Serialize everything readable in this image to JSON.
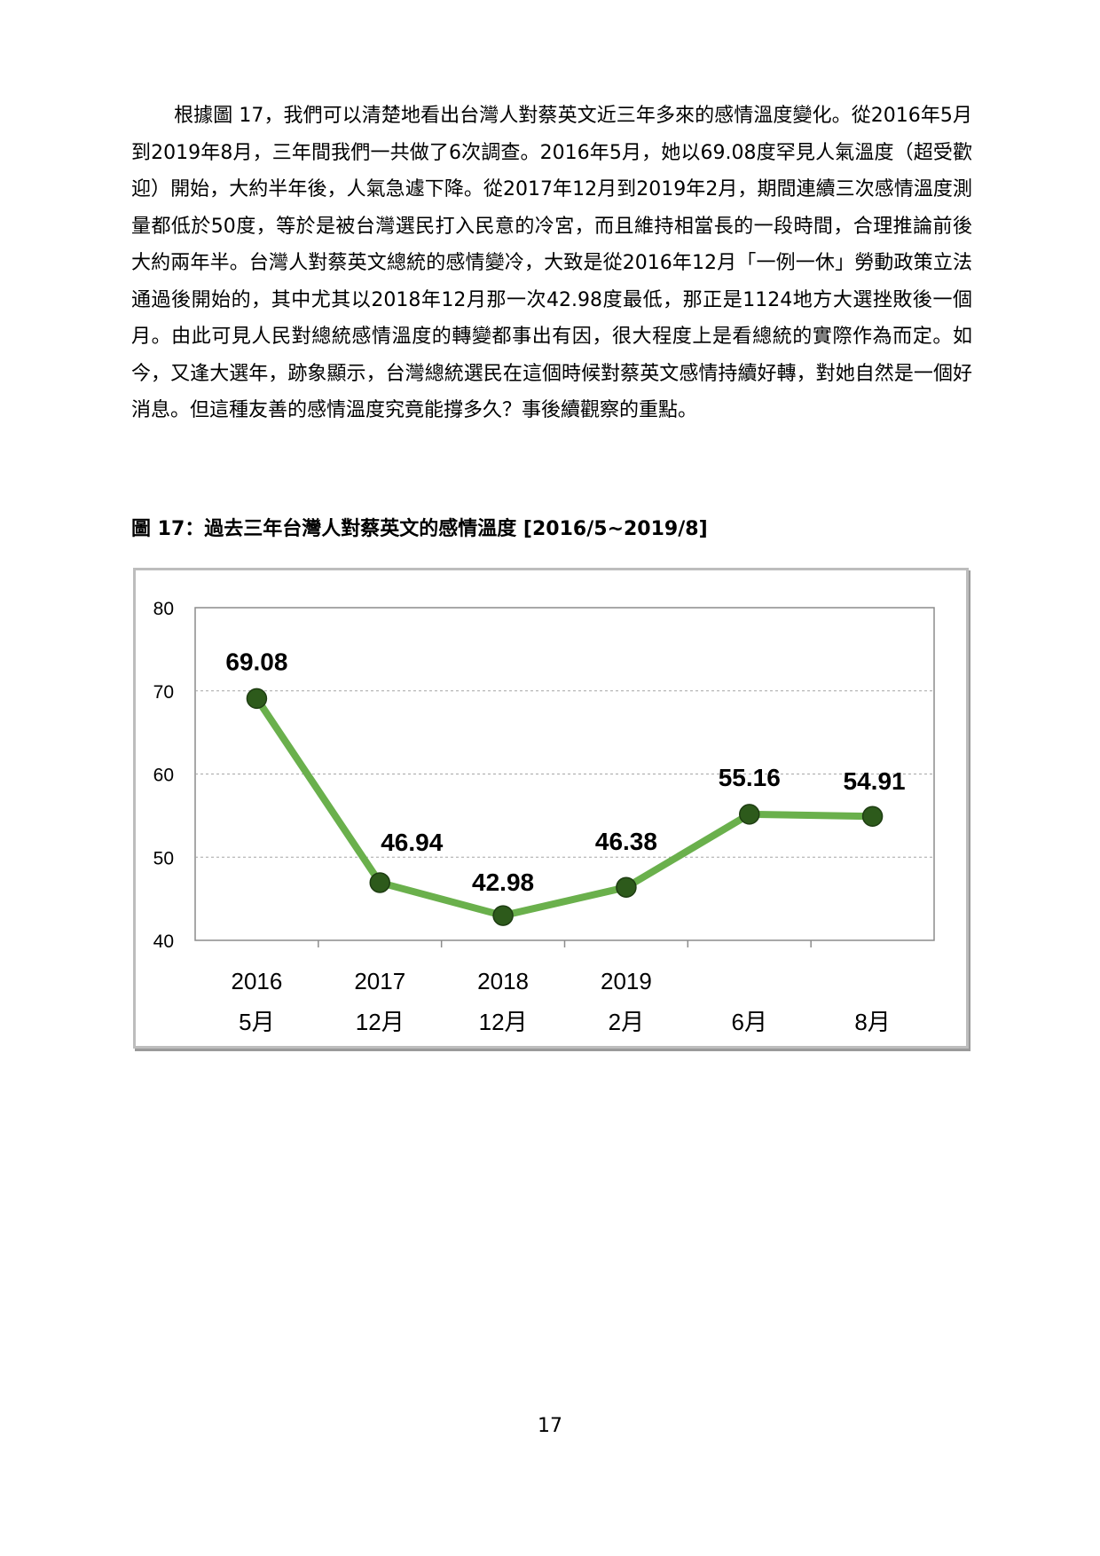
{
  "body_text": "根據圖 17，我們可以清楚地看出台灣人對蔡英文近三年多來的感情溫度變化。從2016年5月到2019年8月，三年間我們一共做了6次調查。2016年5月，她以69.08度罕見人氣溫度（超受歡迎）開始，大約半年後，人氣急遽下降。從2017年12月到2019年2月，期間連續三次感情溫度測量都低於50度，等於是被台灣選民打入民意的冷宮，而且維持相當長的一段時間，合理推論前後大約兩年半。台灣人對蔡英文總統的感情變冷，大致是從2016年12月「一例一休」勞動政策立法通過後開始的，其中尤其以2018年12月那一次42.98度最低，那正是1124地方大選挫敗後一個月。由此可見人民對總統感情溫度的轉變都事出有因，很大程度上是看總統的實際作為而定。如今，又逢大選年，跡象顯示，台灣總統選民在這個時候對蔡英文感情持續好轉，對她自然是一個好消息。但這種友善的感情溫度究竟能撐多久？事後續觀察的重點。",
  "figure_title": "圖 17：過去三年台灣人對蔡英文的感情溫度 [2016/5~2019/8]",
  "page_number": "17",
  "chart_data": {
    "type": "line",
    "categories": [
      {
        "year": "2016",
        "month": "5月"
      },
      {
        "year": "2017",
        "month": "12月"
      },
      {
        "year": "2018",
        "month": "12月"
      },
      {
        "year": "2019",
        "month": "2月"
      },
      {
        "year": "",
        "month": "6月"
      },
      {
        "year": "",
        "month": "8月"
      }
    ],
    "values": [
      69.08,
      46.94,
      42.98,
      46.38,
      55.16,
      54.91
    ],
    "data_labels": [
      "69.08",
      "46.94",
      "42.98",
      "46.38",
      "55.16",
      "54.91"
    ],
    "y_ticks": [
      "80",
      "70",
      "60",
      "50",
      "40"
    ],
    "ylim": [
      40,
      80
    ],
    "grid": true,
    "line_color": "#6ab04c",
    "marker_color": "#2d5a1b"
  }
}
